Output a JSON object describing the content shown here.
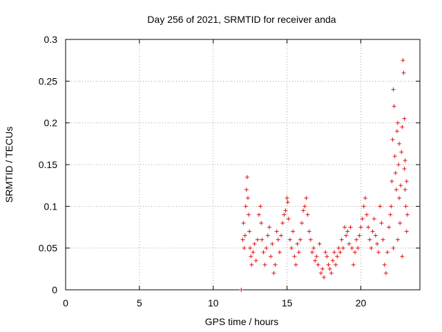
{
  "chart_data": {
    "type": "scatter",
    "title": "Day 256 of 2021, SRMTID for receiver anda",
    "xlabel": "GPS time / hours",
    "ylabel": "SRMTID / TECUs",
    "xlim": [
      0,
      24
    ],
    "ylim": [
      0,
      0.3
    ],
    "grid": true,
    "marker": "+",
    "marker_color": "#e01010",
    "x_ticks": [
      0,
      5,
      10,
      15,
      20
    ],
    "x_tick_labels": [
      "0",
      "5",
      "10",
      "15",
      "20"
    ],
    "y_ticks": [
      0,
      0.05,
      0.1,
      0.15,
      0.2,
      0.25,
      0.3
    ],
    "y_tick_labels": [
      "0",
      "0.05",
      "0.1",
      "0.15",
      "0.2",
      "0.25",
      "0.3"
    ],
    "series": [
      {
        "name": "SRMTID",
        "points": [
          [
            11.9,
            0.0
          ],
          [
            12.0,
            0.06
          ],
          [
            12.05,
            0.08
          ],
          [
            12.1,
            0.05
          ],
          [
            12.15,
            0.065
          ],
          [
            12.2,
            0.1
          ],
          [
            12.25,
            0.12
          ],
          [
            12.3,
            0.135
          ],
          [
            12.35,
            0.11
          ],
          [
            12.4,
            0.09
          ],
          [
            12.45,
            0.07
          ],
          [
            12.5,
            0.05
          ],
          [
            12.55,
            0.04
          ],
          [
            12.6,
            0.03
          ],
          [
            12.7,
            0.045
          ],
          [
            12.8,
            0.055
          ],
          [
            12.9,
            0.035
          ],
          [
            13.0,
            0.06
          ],
          [
            13.1,
            0.09
          ],
          [
            13.2,
            0.1
          ],
          [
            13.25,
            0.08
          ],
          [
            13.3,
            0.06
          ],
          [
            13.4,
            0.045
          ],
          [
            13.5,
            0.03
          ],
          [
            13.6,
            0.05
          ],
          [
            13.7,
            0.065
          ],
          [
            13.8,
            0.075
          ],
          [
            13.9,
            0.04
          ],
          [
            14.0,
            0.055
          ],
          [
            14.1,
            0.02
          ],
          [
            14.2,
            0.03
          ],
          [
            14.3,
            0.07
          ],
          [
            14.4,
            0.06
          ],
          [
            14.5,
            0.045
          ],
          [
            14.6,
            0.065
          ],
          [
            14.7,
            0.08
          ],
          [
            14.8,
            0.09
          ],
          [
            14.9,
            0.095
          ],
          [
            15.0,
            0.11
          ],
          [
            15.05,
            0.105
          ],
          [
            15.1,
            0.085
          ],
          [
            15.2,
            0.06
          ],
          [
            15.3,
            0.05
          ],
          [
            15.4,
            0.07
          ],
          [
            15.5,
            0.04
          ],
          [
            15.6,
            0.03
          ],
          [
            15.7,
            0.055
          ],
          [
            15.8,
            0.045
          ],
          [
            15.9,
            0.06
          ],
          [
            16.0,
            0.08
          ],
          [
            16.1,
            0.095
          ],
          [
            16.2,
            0.1
          ],
          [
            16.3,
            0.11
          ],
          [
            16.4,
            0.09
          ],
          [
            16.5,
            0.07
          ],
          [
            16.6,
            0.06
          ],
          [
            16.7,
            0.045
          ],
          [
            16.8,
            0.05
          ],
          [
            16.9,
            0.035
          ],
          [
            17.0,
            0.04
          ],
          [
            17.1,
            0.03
          ],
          [
            17.2,
            0.055
          ],
          [
            17.3,
            0.02
          ],
          [
            17.4,
            0.025
          ],
          [
            17.5,
            0.015
          ],
          [
            17.6,
            0.045
          ],
          [
            17.7,
            0.04
          ],
          [
            17.8,
            0.03
          ],
          [
            17.9,
            0.025
          ],
          [
            18.0,
            0.02
          ],
          [
            18.1,
            0.035
          ],
          [
            18.2,
            0.045
          ],
          [
            18.3,
            0.03
          ],
          [
            18.4,
            0.04
          ],
          [
            18.5,
            0.05
          ],
          [
            18.6,
            0.045
          ],
          [
            18.7,
            0.06
          ],
          [
            18.8,
            0.05
          ],
          [
            18.9,
            0.075
          ],
          [
            19.0,
            0.065
          ],
          [
            19.1,
            0.07
          ],
          [
            19.2,
            0.055
          ],
          [
            19.3,
            0.075
          ],
          [
            19.4,
            0.05
          ],
          [
            19.5,
            0.03
          ],
          [
            19.6,
            0.045
          ],
          [
            19.7,
            0.06
          ],
          [
            19.8,
            0.05
          ],
          [
            19.9,
            0.065
          ],
          [
            20.0,
            0.075
          ],
          [
            20.1,
            0.085
          ],
          [
            20.2,
            0.1
          ],
          [
            20.3,
            0.11
          ],
          [
            20.4,
            0.09
          ],
          [
            20.5,
            0.075
          ],
          [
            20.6,
            0.06
          ],
          [
            20.7,
            0.05
          ],
          [
            20.8,
            0.07
          ],
          [
            20.9,
            0.085
          ],
          [
            21.0,
            0.065
          ],
          [
            21.1,
            0.055
          ],
          [
            21.2,
            0.045
          ],
          [
            21.3,
            0.1
          ],
          [
            21.4,
            0.08
          ],
          [
            21.5,
            0.06
          ],
          [
            21.6,
            0.03
          ],
          [
            21.7,
            0.02
          ],
          [
            21.8,
            0.045
          ],
          [
            21.9,
            0.075
          ],
          [
            22.0,
            0.09
          ],
          [
            22.05,
            0.1
          ],
          [
            22.1,
            0.13
          ],
          [
            22.15,
            0.18
          ],
          [
            22.2,
            0.24
          ],
          [
            22.25,
            0.22
          ],
          [
            22.3,
            0.16
          ],
          [
            22.35,
            0.14
          ],
          [
            22.4,
            0.12
          ],
          [
            22.45,
            0.19
          ],
          [
            22.5,
            0.2
          ],
          [
            22.55,
            0.15
          ],
          [
            22.6,
            0.11
          ],
          [
            22.65,
            0.08
          ],
          [
            22.7,
            0.125
          ],
          [
            22.75,
            0.165
          ],
          [
            22.8,
            0.195
          ],
          [
            22.85,
            0.275
          ],
          [
            22.9,
            0.26
          ],
          [
            22.95,
            0.145
          ],
          [
            23.0,
            0.12
          ],
          [
            23.05,
            0.1
          ],
          [
            23.1,
            0.07
          ],
          [
            23.15,
            0.09
          ],
          [
            22.2,
            0.05
          ],
          [
            22.5,
            0.06
          ],
          [
            22.8,
            0.04
          ],
          [
            23.0,
            0.155
          ],
          [
            22.6,
            0.175
          ],
          [
            22.95,
            0.205
          ],
          [
            23.1,
            0.13
          ]
        ]
      }
    ]
  }
}
